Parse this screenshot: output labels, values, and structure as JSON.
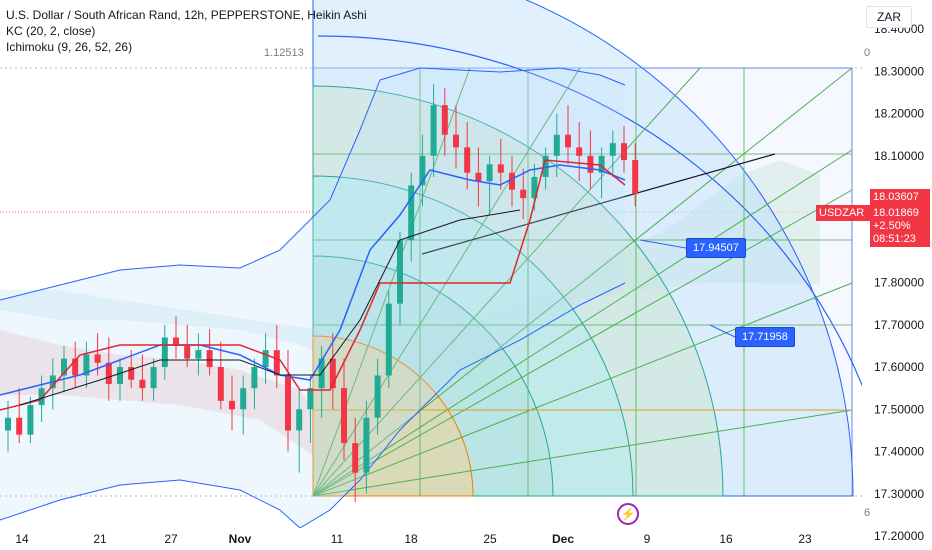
{
  "header": {
    "title": "U.S. Dollar / South African Rand, 12h, PEPPERSTONE, Heikin Ashi",
    "ind1": "KC (20, 2, close)",
    "ind2": "Ichimoku (9, 26, 52, 26)"
  },
  "currency": "ZAR",
  "fib_label_top": "1.12513",
  "side_mark_top": "0",
  "side_mark_bottom": "6",
  "symbol_tag": "USDZAR",
  "price": {
    "high": "18.03607",
    "last": "18.01869",
    "change": "+2.50%",
    "countdown": "08:51:23"
  },
  "annotations": [
    {
      "label": "17.94507",
      "value": 17.94507
    },
    {
      "label": "17.71958",
      "value": 17.71958
    }
  ],
  "colors": {
    "up": "#22ab94",
    "down": "#f23645",
    "tenkan": "#2962ff",
    "kijun": "#e0262d",
    "keltner": "#2962ff",
    "fan": "#4caf50",
    "accent": "#2962ff"
  },
  "chart_data": {
    "type": "candlestick",
    "title": "U.S. Dollar / South African Rand, 12h, PEPPERSTONE, Heikin Ashi",
    "ylim": [
      17.2,
      18.45
    ],
    "y_ticks": [
      "18.40000",
      "18.30000",
      "18.20000",
      "18.10000",
      "18.00000",
      "17.90000",
      "17.80000",
      "17.70000",
      "17.60000",
      "17.50000",
      "17.40000",
      "17.30000",
      "17.20000"
    ],
    "x_ticks": [
      "14",
      "21",
      "27",
      "Nov",
      "11",
      "18",
      "25",
      "Dec",
      "9",
      "16",
      "23"
    ],
    "x_ticks_bold": [
      "Nov",
      "Dec"
    ],
    "series": [
      {
        "name": "USDZAR",
        "ohlc_approx": [
          [
            17.45,
            17.52,
            17.4,
            17.48
          ],
          [
            17.48,
            17.55,
            17.42,
            17.44
          ],
          [
            17.44,
            17.53,
            17.42,
            17.51
          ],
          [
            17.51,
            17.58,
            17.47,
            17.55
          ],
          [
            17.55,
            17.62,
            17.5,
            17.58
          ],
          [
            17.58,
            17.65,
            17.54,
            17.62
          ],
          [
            17.62,
            17.66,
            17.55,
            17.58
          ],
          [
            17.58,
            17.66,
            17.55,
            17.63
          ],
          [
            17.63,
            17.68,
            17.58,
            17.61
          ],
          [
            17.61,
            17.67,
            17.52,
            17.56
          ],
          [
            17.56,
            17.62,
            17.52,
            17.6
          ],
          [
            17.6,
            17.64,
            17.55,
            17.57
          ],
          [
            17.57,
            17.63,
            17.52,
            17.55
          ],
          [
            17.55,
            17.62,
            17.52,
            17.6
          ],
          [
            17.6,
            17.7,
            17.57,
            17.67
          ],
          [
            17.67,
            17.72,
            17.62,
            17.65
          ],
          [
            17.65,
            17.7,
            17.6,
            17.62
          ],
          [
            17.62,
            17.68,
            17.58,
            17.64
          ],
          [
            17.64,
            17.69,
            17.58,
            17.6
          ],
          [
            17.6,
            17.66,
            17.5,
            17.52
          ],
          [
            17.52,
            17.58,
            17.45,
            17.5
          ],
          [
            17.5,
            17.58,
            17.44,
            17.55
          ],
          [
            17.55,
            17.62,
            17.5,
            17.6
          ],
          [
            17.6,
            17.68,
            17.56,
            17.64
          ],
          [
            17.64,
            17.7,
            17.55,
            17.58
          ],
          [
            17.58,
            17.64,
            17.4,
            17.45
          ],
          [
            17.45,
            17.55,
            17.35,
            17.5
          ],
          [
            17.5,
            17.58,
            17.42,
            17.55
          ],
          [
            17.55,
            17.65,
            17.48,
            17.62
          ],
          [
            17.62,
            17.68,
            17.5,
            17.55
          ],
          [
            17.55,
            17.62,
            17.38,
            17.42
          ],
          [
            17.42,
            17.48,
            17.28,
            17.35
          ],
          [
            17.35,
            17.52,
            17.3,
            17.48
          ],
          [
            17.48,
            17.62,
            17.44,
            17.58
          ],
          [
            17.58,
            17.78,
            17.55,
            17.75
          ],
          [
            17.75,
            17.92,
            17.7,
            17.9
          ],
          [
            17.9,
            18.06,
            17.85,
            18.03
          ],
          [
            18.03,
            18.15,
            17.98,
            18.1
          ],
          [
            18.1,
            18.27,
            18.05,
            18.22
          ],
          [
            18.22,
            18.26,
            18.1,
            18.15
          ],
          [
            18.15,
            18.22,
            18.07,
            18.12
          ],
          [
            18.12,
            18.18,
            18.02,
            18.06
          ],
          [
            18.06,
            18.12,
            17.98,
            18.04
          ],
          [
            18.04,
            18.1,
            17.96,
            18.08
          ],
          [
            18.08,
            18.14,
            18.02,
            18.06
          ],
          [
            18.06,
            18.1,
            17.98,
            18.02
          ],
          [
            18.02,
            18.07,
            17.95,
            18.0
          ],
          [
            18.0,
            18.08,
            17.97,
            18.05
          ],
          [
            18.05,
            18.12,
            18.02,
            18.1
          ],
          [
            18.1,
            18.2,
            18.05,
            18.15
          ],
          [
            18.15,
            18.22,
            18.08,
            18.12
          ],
          [
            18.12,
            18.18,
            18.04,
            18.1
          ],
          [
            18.1,
            18.16,
            18.02,
            18.06
          ],
          [
            18.06,
            18.12,
            18.0,
            18.1
          ],
          [
            18.1,
            18.16,
            18.05,
            18.13
          ],
          [
            18.13,
            18.17,
            18.06,
            18.09
          ],
          [
            18.09,
            18.13,
            17.98,
            18.01
          ]
        ]
      },
      {
        "name": "Tenkan"
      },
      {
        "name": "Kijun"
      },
      {
        "name": "Keltner"
      }
    ]
  }
}
